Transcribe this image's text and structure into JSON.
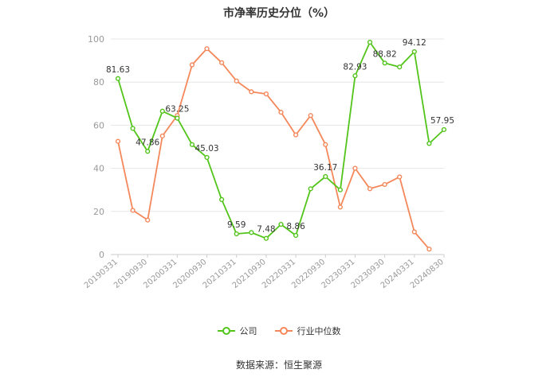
{
  "chart_data": {
    "type": "line",
    "title": "市净率历史分位（%）",
    "ylim": [
      0,
      100
    ],
    "y_ticks": [
      "0",
      "20",
      "40",
      "60",
      "80",
      "100"
    ],
    "x_tick_labels": [
      "20190331",
      "20190930",
      "20200331",
      "20200930",
      "20210331",
      "20210930",
      "20220331",
      "20220930",
      "20230331",
      "20230930",
      "20240331",
      "20240830"
    ],
    "grid": true,
    "legend_position": "bottom",
    "series": [
      {
        "name": "公司",
        "color": "#52c41a",
        "values": [
          81.63,
          58.5,
          47.86,
          66.5,
          63.25,
          51.0,
          45.03,
          25.5,
          9.59,
          10.2,
          7.48,
          14.0,
          8.86,
          30.5,
          36.17,
          30.0,
          82.93,
          98.5,
          88.82,
          87.0,
          94.12,
          51.5,
          57.95
        ],
        "labels": [
          "81.63",
          "",
          "47.86",
          "",
          "63.25",
          "",
          "45.03",
          "",
          "9.59",
          "",
          "7.48",
          "",
          "8.86",
          "",
          "36.17",
          "",
          "82.93",
          "",
          "88.82",
          "",
          "94.12",
          "",
          "57.95"
        ]
      },
      {
        "name": "行业中位数",
        "color": "#f4885b",
        "values": [
          52.5,
          20.5,
          16.0,
          55.0,
          64.5,
          88.0,
          95.5,
          89.0,
          80.5,
          75.5,
          74.5,
          66.0,
          55.5,
          64.5,
          51.0,
          22.0,
          40.0,
          30.5,
          32.5,
          36.0,
          10.5,
          2.5
        ]
      }
    ]
  },
  "source_text": "数据来源：恒生聚源"
}
